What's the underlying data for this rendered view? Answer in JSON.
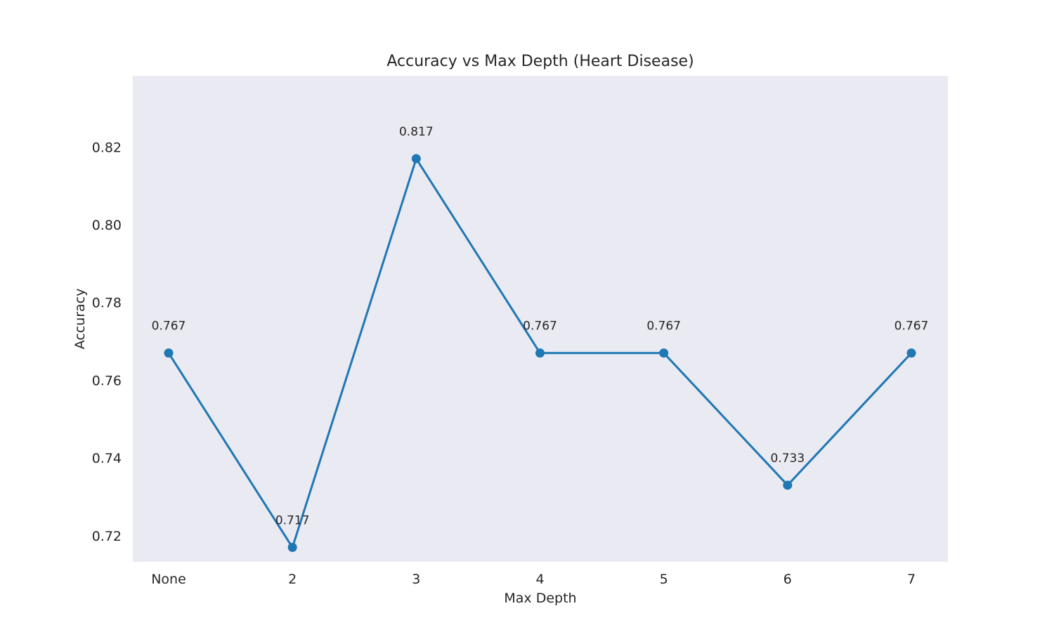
{
  "chart_data": {
    "type": "line",
    "title": "Accuracy vs Max Depth (Heart Disease)",
    "xlabel": "Max Depth",
    "ylabel": "Accuracy",
    "categories": [
      "None",
      "2",
      "3",
      "4",
      "5",
      "6",
      "7"
    ],
    "series": [
      {
        "values": [
          0.767,
          0.717,
          0.817,
          0.767,
          0.767,
          0.733,
          0.767
        ],
        "data_labels": [
          "0.767",
          "0.717",
          "0.817",
          "0.767",
          "0.767",
          "0.733",
          "0.767"
        ],
        "color": "#1f77b4",
        "marker": "circle"
      }
    ],
    "yticks": [
      "0.72",
      "0.74",
      "0.76",
      "0.78",
      "0.80",
      "0.82"
    ],
    "ylim": [
      0.7133,
      0.8383
    ],
    "grid": false,
    "legend": "none",
    "background_color": "#eaeaf2"
  }
}
